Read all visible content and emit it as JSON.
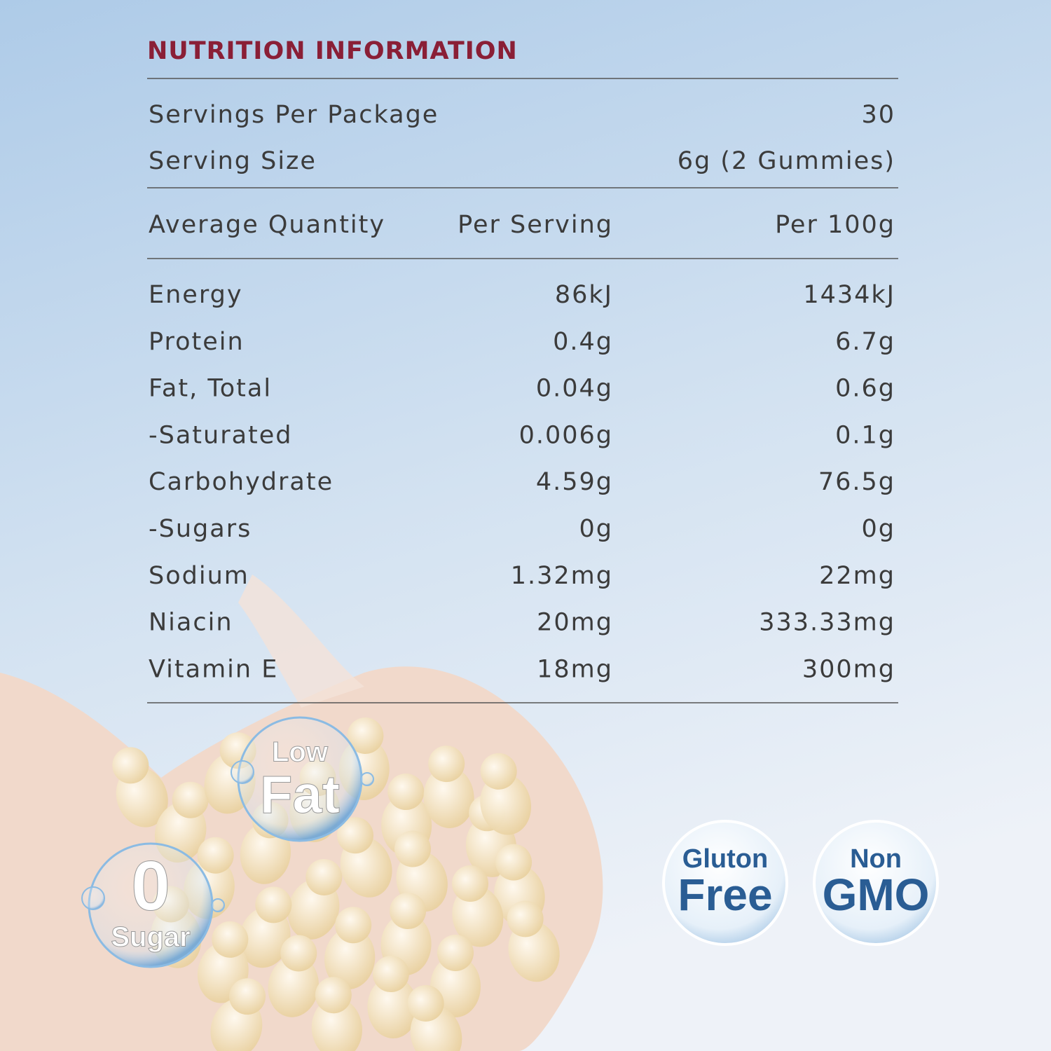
{
  "title": "NUTRITION INFORMATION",
  "servings": [
    {
      "label": "Servings Per Package",
      "value": "30"
    },
    {
      "label": "Serving Size",
      "value": "6g (2 Gummies)"
    }
  ],
  "table": {
    "header": [
      "Average Quantity",
      "Per Serving",
      "Per 100g"
    ],
    "rows": [
      [
        "Energy",
        "86kJ",
        "1434kJ"
      ],
      [
        "Protein",
        "0.4g",
        "6.7g"
      ],
      [
        "Fat, Total",
        "0.04g",
        "0.6g"
      ],
      [
        "-Saturated",
        "0.006g",
        "0.1g"
      ],
      [
        "Carbohydrate",
        "4.59g",
        "76.5g"
      ],
      [
        "-Sugars",
        "0g",
        "0g"
      ],
      [
        "Sodium",
        "1.32mg",
        "22mg"
      ],
      [
        "Niacin",
        "20mg",
        "333.33mg"
      ],
      [
        "Vitamin E",
        "18mg",
        "300mg"
      ]
    ]
  },
  "badges": [
    {
      "top": "Low",
      "bottom": "Fat"
    },
    {
      "top": "0",
      "bottom": "Sugar"
    },
    {
      "top": "Gluton",
      "bottom": "Free"
    },
    {
      "top": "Non",
      "bottom": "GMO"
    }
  ]
}
